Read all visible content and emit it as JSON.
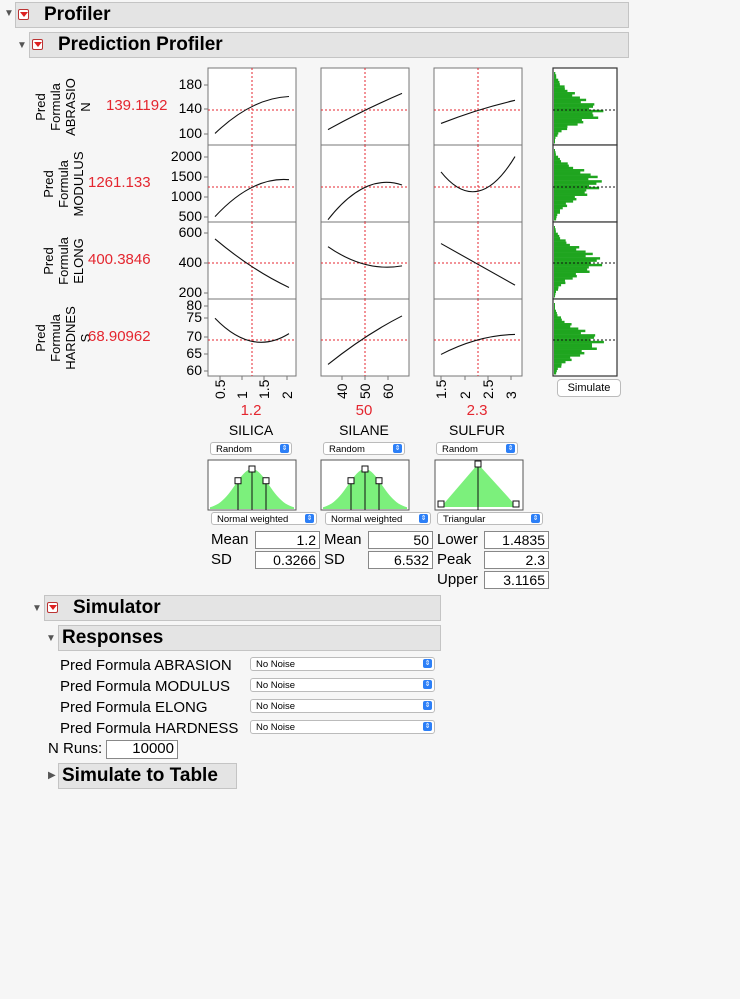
{
  "profiler": {
    "title": "Profiler"
  },
  "prediction_profiler": {
    "title": "Prediction Profiler",
    "responses": [
      {
        "label": "Pred Formula ABRASIO N",
        "line1": "Pred",
        "line2": "Formula",
        "line3": "ABRASIO",
        "line4": "N",
        "value": "139.1192",
        "ticks": [
          "180",
          "140",
          "100"
        ]
      },
      {
        "label": "Pred Formula MODULUS",
        "line1": "Pred",
        "line2": "Formula",
        "line3": "MODULUS",
        "value": "1261.133",
        "ticks": [
          "2000",
          "1500",
          "1000",
          "500"
        ]
      },
      {
        "label": "Pred Formula ELONG",
        "line1": "Pred",
        "line2": "Formula",
        "line3": "ELONG",
        "value": "400.3846",
        "ticks": [
          "600",
          "400",
          "200"
        ]
      },
      {
        "label": "Pred Formula HARDNES S",
        "line1": "Pred",
        "line2": "Formula",
        "line3": "HARDNES",
        "line4": "S",
        "value": "68.90962",
        "ticks": [
          "80",
          "75",
          "70",
          "65",
          "60"
        ]
      }
    ],
    "factors": [
      {
        "name": "SILICA",
        "value": "1.2",
        "xticks": [
          "0.5",
          "1",
          "1.5",
          "2"
        ],
        "random": "Random",
        "dist": "Normal weighted",
        "p1_label": "Mean",
        "p1": "1.2",
        "p2_label": "SD",
        "p2": "0.3266"
      },
      {
        "name": "SILANE",
        "value": "50",
        "xticks": [
          "40",
          "50",
          "60"
        ],
        "random": "Random",
        "dist": "Normal weighted",
        "p1_label": "Mean",
        "p1": "50",
        "p2_label": "SD",
        "p2": "6.532"
      },
      {
        "name": "SULFUR",
        "value": "2.3",
        "xticks": [
          "1.5",
          "2",
          "2.5",
          "3"
        ],
        "random": "Random",
        "dist": "Triangular",
        "p1_label": "Lower",
        "p1": "1.4835",
        "p2_label": "Peak",
        "p2": "2.3",
        "p3_label": "Upper",
        "p3": "3.1165"
      }
    ],
    "simulate_button": "Simulate"
  },
  "simulator": {
    "title": "Simulator",
    "responses_title": "Responses",
    "responses": [
      {
        "name": "Pred Formula ABRASION",
        "noise": "No Noise"
      },
      {
        "name": "Pred Formula MODULUS",
        "noise": "No Noise"
      },
      {
        "name": "Pred Formula ELONG",
        "noise": "No Noise"
      },
      {
        "name": "Pred Formula HARDNESS",
        "noise": "No Noise"
      }
    ],
    "n_runs_label": "N Runs:",
    "n_runs": "10000",
    "simulate_to_table": "Simulate to Table"
  },
  "colors": {
    "accent_red": "#e4262f",
    "histogram_green": "#1fa51f",
    "distribution_green": "#7cf07c",
    "select_blue": "#2c7ff7"
  }
}
